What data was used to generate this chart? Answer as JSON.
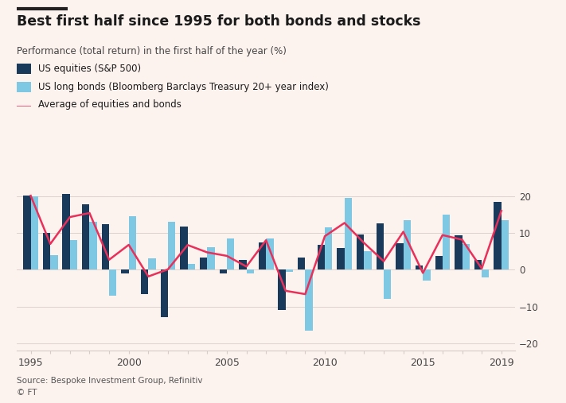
{
  "years": [
    1995,
    1996,
    1997,
    1998,
    1999,
    2000,
    2001,
    2002,
    2003,
    2004,
    2005,
    2006,
    2007,
    2008,
    2009,
    2010,
    2011,
    2012,
    2013,
    2014,
    2015,
    2016,
    2017,
    2018,
    2019
  ],
  "equities": [
    20.2,
    10.0,
    20.6,
    17.7,
    12.4,
    -1.0,
    -6.7,
    -12.8,
    11.8,
    3.4,
    -1.0,
    2.7,
    7.5,
    -11.0,
    3.2,
    6.7,
    5.9,
    9.5,
    12.6,
    7.1,
    1.2,
    3.8,
    9.3,
    2.6,
    18.5
  ],
  "bonds": [
    20.0,
    4.0,
    8.0,
    13.0,
    -7.0,
    14.5,
    3.0,
    13.0,
    1.5,
    6.0,
    8.5,
    -1.0,
    8.5,
    -0.5,
    -16.5,
    11.5,
    19.5,
    5.0,
    -8.0,
    13.5,
    -3.0,
    15.0,
    7.0,
    -2.0,
    13.5
  ],
  "average": [
    20.1,
    7.0,
    14.3,
    15.4,
    2.7,
    6.75,
    -1.85,
    0.1,
    6.7,
    4.7,
    3.75,
    0.85,
    8.0,
    -5.75,
    -6.65,
    9.1,
    12.7,
    7.25,
    2.3,
    10.3,
    -0.9,
    9.4,
    8.15,
    0.3,
    16.0
  ],
  "equity_color": "#1a3a5c",
  "bond_color": "#7ec8e3",
  "avg_color": "#e8305a",
  "bg_color": "#fdf3ee",
  "grid_color": "#d8ccc8",
  "title": "Best first half since 1995 for both bonds and stocks",
  "subtitle": "Performance (total return) in the first half of the year (%)",
  "legend_equity": "US equities (S&P 500)",
  "legend_bond": "US long bonds (Bloomberg Barclays Treasury 20+ year index)",
  "legend_avg": "Average of equities and bonds",
  "source": "Source: Bespoke Investment Group, Refinitiv",
  "footer": "© FT",
  "ylim": [
    -22,
    24
  ],
  "yticks": [
    -20,
    -10,
    0,
    10,
    20
  ],
  "xtick_labels": [
    1995,
    2000,
    2005,
    2010,
    2015,
    2019
  ],
  "title_bar_color": "#222222",
  "bar_width": 0.38
}
